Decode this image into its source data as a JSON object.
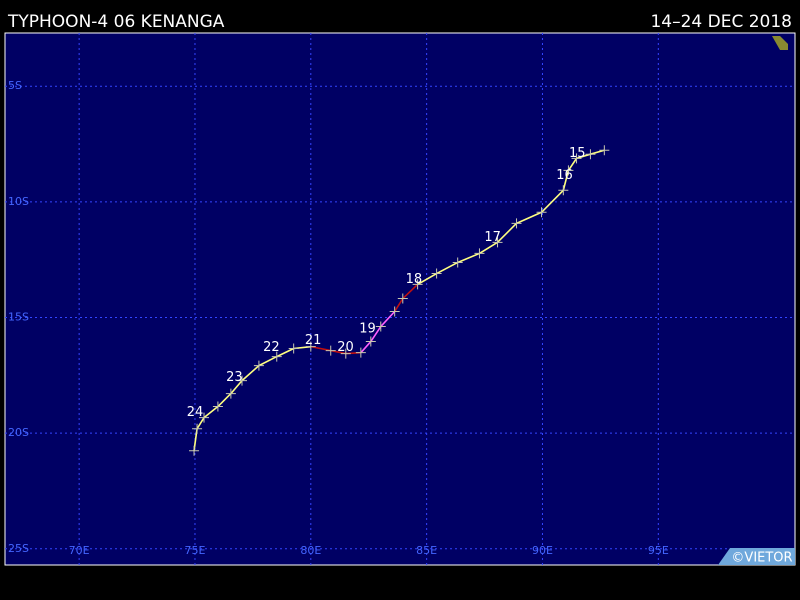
{
  "chart_data": {
    "type": "track",
    "title": "TYPHOON-4 06 KENANGA",
    "date_range": "14–24 DEC 2018",
    "credit": "©VIETOR",
    "xlim": [
      66.8,
      100.9
    ],
    "ylim": [
      -25.7,
      -2.7
    ],
    "xticks": [
      {
        "value": 70,
        "label": "70E"
      },
      {
        "value": 75,
        "label": "75E"
      },
      {
        "value": 80,
        "label": "80E"
      },
      {
        "value": 85,
        "label": "85E"
      },
      {
        "value": 90,
        "label": "90E"
      },
      {
        "value": 95,
        "label": "95E"
      }
    ],
    "yticks": [
      {
        "value": -5,
        "label": "5S"
      },
      {
        "value": -10,
        "label": "10S"
      },
      {
        "value": -15,
        "label": "15S"
      },
      {
        "value": -20,
        "label": "20S"
      },
      {
        "value": -25,
        "label": "25S"
      }
    ],
    "grid": true,
    "track": {
      "lon": [
        92.67,
        92.07,
        91.47,
        91.12,
        90.9,
        89.96,
        88.88,
        88.06,
        87.28,
        86.34,
        85.43,
        84.61,
        83.97,
        83.62,
        83.02,
        82.59,
        82.16,
        81.51,
        80.86,
        80.0,
        79.26,
        78.53,
        77.76,
        77.03,
        76.55,
        75.99,
        75.39,
        75.09,
        74.96
      ],
      "lat": [
        -7.77,
        -7.94,
        -8.12,
        -8.64,
        -9.5,
        -10.45,
        -10.93,
        -11.75,
        -12.23,
        -12.62,
        -13.1,
        -13.57,
        -14.18,
        -14.74,
        -15.39,
        -16.04,
        -16.52,
        -16.56,
        -16.43,
        -16.26,
        -16.34,
        -16.69,
        -17.08,
        -17.73,
        -18.29,
        -18.85,
        -19.33,
        -19.81,
        -20.76
      ],
      "colors": [
        "#ffff80",
        "#ffff80",
        "#ffff80",
        "#ffff80",
        "#ffff80",
        "#ffff80",
        "#ffff80",
        "#ffff80",
        "#ffff80",
        "#ffff80",
        "#ffff80",
        "#ffff80",
        "#c01010",
        "#c01010",
        "#ff60ff",
        "#ff60ff",
        "#ff60ff",
        "#c01010",
        "#c01010",
        "#c01010",
        "#ffff80",
        "#ffff80",
        "#ffff80",
        "#ffff80",
        "#ffff80",
        "#ffff80",
        "#ffff80",
        "#ffff80",
        "#ffff80"
      ]
    },
    "day_labels": [
      {
        "text": "15",
        "lon": 91.5,
        "lat": -7.9
      },
      {
        "text": "16",
        "lon": 90.95,
        "lat": -8.85
      },
      {
        "text": "17",
        "lon": 87.85,
        "lat": -11.55
      },
      {
        "text": "18",
        "lon": 84.45,
        "lat": -13.35
      },
      {
        "text": "19",
        "lon": 82.45,
        "lat": -15.5
      },
      {
        "text": "20",
        "lon": 81.5,
        "lat": -16.3
      },
      {
        "text": "21",
        "lon": 80.1,
        "lat": -16.0
      },
      {
        "text": "22",
        "lon": 78.3,
        "lat": -16.3
      },
      {
        "text": "23",
        "lon": 76.7,
        "lat": -17.6
      },
      {
        "text": "24",
        "lon": 75.0,
        "lat": -19.1
      }
    ]
  }
}
